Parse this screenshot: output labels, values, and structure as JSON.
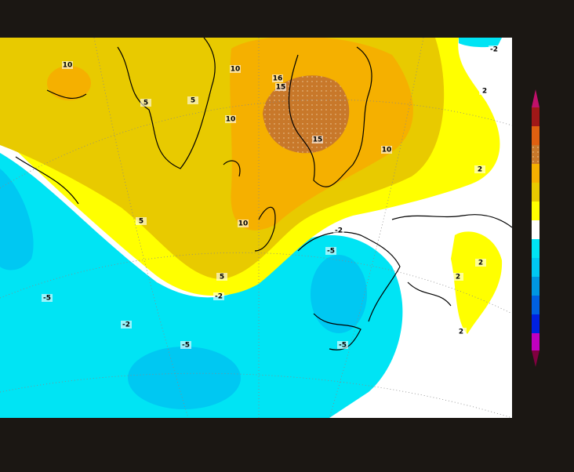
{
  "contour_labels": [
    "10",
    "5",
    "5",
    "10",
    "16",
    "15",
    "10",
    "15",
    "10",
    "-2",
    "2",
    "2",
    "5",
    "10",
    "5",
    "-2",
    "-5",
    "-2",
    "-5",
    "-2",
    "-5",
    "-5",
    "2",
    "2",
    "2"
  ]
}
